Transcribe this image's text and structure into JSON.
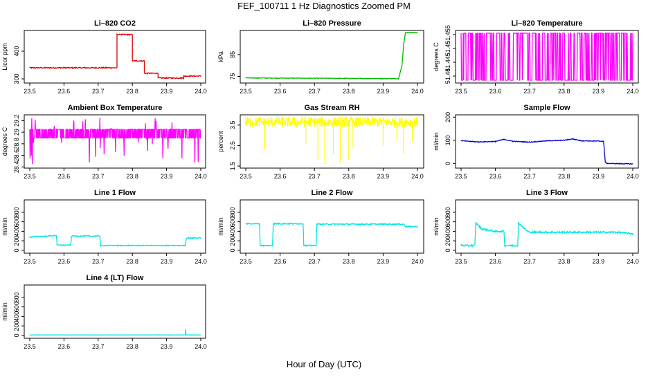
{
  "page": {
    "title": "FEF_100711  1 Hz Diagnostics Zoomed PM",
    "xlabel": "Hour of Day (UTC)"
  },
  "chart_data": [
    {
      "id": "co2",
      "type": "line",
      "title": "Li–820 CO2",
      "ylabel": "Licor ppm",
      "color": "#e00000",
      "xlim": [
        23.5,
        24.0
      ],
      "ylim": [
        285,
        475
      ],
      "xticks": [
        "23.5",
        "23.6",
        "23.7",
        "23.8",
        "23.9",
        "24.0"
      ],
      "yticks": [
        300,
        400
      ],
      "series": [
        {
          "x": [
            23.5,
            23.755,
            23.755,
            23.8,
            23.8,
            23.835,
            23.835,
            23.875,
            23.875,
            23.95,
            23.95,
            24.0
          ],
          "y": [
            340,
            340,
            460,
            460,
            365,
            365,
            320,
            320,
            303,
            303,
            310,
            310
          ],
          "noise": 2
        }
      ]
    },
    {
      "id": "pressure",
      "type": "line",
      "title": "Li–820 Pressure",
      "ylabel": "kPa",
      "color": "#00bb00",
      "xlim": [
        23.5,
        24.0
      ],
      "ylim": [
        72,
        96
      ],
      "xticks": [
        "23.5",
        "23.6",
        "23.7",
        "23.8",
        "23.9",
        "24.0"
      ],
      "yticks": [
        75,
        85
      ],
      "series": [
        {
          "x": [
            23.5,
            23.945,
            23.955,
            23.96,
            23.965,
            24.0
          ],
          "y": [
            74.3,
            74.0,
            80,
            90,
            95,
            95
          ],
          "noise": 0.15
        }
      ]
    },
    {
      "id": "licor_temp",
      "type": "line",
      "title": "Li–820 Temperature",
      "ylabel": "degrees C",
      "color": "#ff00ff",
      "xlim": [
        23.5,
        24.0
      ],
      "ylim": [
        51.4375,
        51.4565
      ],
      "xticks": [
        "23.5",
        "23.6",
        "23.7",
        "23.8",
        "23.9",
        "24.0"
      ],
      "yticks": [
        51.44,
        51.445,
        51.45,
        51.455
      ],
      "series": [
        {
          "pattern": "binary",
          "low": 51.4385,
          "high": 51.4555
        }
      ]
    },
    {
      "id": "ambient_temp",
      "type": "line",
      "title": "Ambient Box Temperature",
      "ylabel": "degrees C",
      "color": "#ff00ff",
      "xlim": [
        23.5,
        24.0
      ],
      "ylim": [
        28.38,
        29.3
      ],
      "xticks": [
        "23.5",
        "23.6",
        "23.7",
        "23.8",
        "23.9",
        "24.0"
      ],
      "yticks": [
        28.4,
        28.6,
        28.8,
        29.0,
        29.2
      ],
      "series": [
        {
          "pattern": "band",
          "low": 28.9,
          "high": 29.05,
          "spike_low": 28.42,
          "spike_high": 29.25
        }
      ]
    },
    {
      "id": "rh",
      "type": "line",
      "title": "Gas Stream RH",
      "ylabel": "percent",
      "color": "#ffff00",
      "xlim": [
        23.5,
        24.0
      ],
      "ylim": [
        1.4,
        4.0
      ],
      "xticks": [
        "23.5",
        "23.6",
        "23.7",
        "23.8",
        "23.9",
        "24.0"
      ],
      "yticks": [
        1.5,
        2.5,
        3.5
      ],
      "series": [
        {
          "x": [
            23.5,
            24.0
          ],
          "y": [
            3.65,
            3.65
          ],
          "noise": 0.25,
          "spikes": [
            [
              23.555,
              2.3
            ],
            [
              23.675,
              2.6
            ],
            [
              23.71,
              1.8
            ],
            [
              23.73,
              1.6
            ],
            [
              23.755,
              2.1
            ],
            [
              23.775,
              1.7
            ],
            [
              23.8,
              1.8
            ],
            [
              23.81,
              2.4
            ],
            [
              23.9,
              2.5
            ],
            [
              23.94,
              2.8
            ],
            [
              23.96,
              2.1
            ],
            [
              23.985,
              2.7
            ]
          ]
        }
      ]
    },
    {
      "id": "sample_flow",
      "type": "line",
      "title": "Sample Flow",
      "ylabel": "ml/min",
      "color": "#0000cc",
      "xlim": [
        23.5,
        24.0
      ],
      "ylim": [
        -20,
        210
      ],
      "xticks": [
        "23.5",
        "23.6",
        "23.7",
        "23.8",
        "23.9",
        "24.0"
      ],
      "yticks": [
        0,
        100,
        200
      ],
      "series": [
        {
          "x": [
            23.5,
            23.55,
            23.6,
            23.625,
            23.65,
            23.7,
            23.75,
            23.8,
            23.825,
            23.85,
            23.915,
            23.92,
            23.925,
            24.0
          ],
          "y": [
            98,
            93,
            95,
            104,
            96,
            92,
            98,
            100,
            106,
            98,
            96,
            5,
            0,
            -2
          ],
          "noise": 1.5
        }
      ]
    },
    {
      "id": "line1",
      "type": "line",
      "title": "Line 1 Flow",
      "ylabel": "ml/min",
      "color": "#00e5e5",
      "xlim": [
        23.5,
        24.0
      ],
      "ylim": [
        -60,
        1060
      ],
      "xticks": [
        "23.5",
        "23.6",
        "23.7",
        "23.8",
        "23.9",
        "24.0"
      ],
      "yticks": [
        0,
        200,
        400,
        600,
        800
      ],
      "series": [
        {
          "x": [
            23.5,
            23.502,
            23.578,
            23.58,
            23.62,
            23.622,
            23.705,
            23.707,
            23.955,
            23.958,
            24.0
          ],
          "y": [
            280,
            280,
            310,
            110,
            110,
            300,
            300,
            100,
            100,
            260,
            260
          ],
          "noise": 10
        }
      ]
    },
    {
      "id": "line2",
      "type": "line",
      "title": "Line 2 Flow",
      "ylabel": "ml/min",
      "color": "#00e5e5",
      "xlim": [
        23.5,
        24.0
      ],
      "ylim": [
        -60,
        1060
      ],
      "xticks": [
        "23.5",
        "23.6",
        "23.7",
        "23.8",
        "23.9",
        "24.0"
      ],
      "yticks": [
        0,
        200,
        400,
        600,
        800
      ],
      "series": [
        {
          "x": [
            23.5,
            23.54,
            23.542,
            23.578,
            23.58,
            23.667,
            23.669,
            23.705,
            23.707,
            23.96,
            23.965,
            24.0
          ],
          "y": [
            560,
            560,
            100,
            100,
            560,
            560,
            100,
            100,
            550,
            550,
            500,
            500
          ],
          "noise": 12
        }
      ]
    },
    {
      "id": "line3",
      "type": "line",
      "title": "Line 3 Flow",
      "ylabel": "ml/min",
      "color": "#00e5e5",
      "xlim": [
        23.5,
        24.0
      ],
      "ylim": [
        -60,
        1060
      ],
      "xticks": [
        "23.5",
        "23.6",
        "23.7",
        "23.8",
        "23.9",
        "24.0"
      ],
      "yticks": [
        0,
        200,
        400,
        600,
        800
      ],
      "series": [
        {
          "x": [
            23.5,
            23.502,
            23.54,
            23.543,
            23.56,
            23.6,
            23.625,
            23.627,
            23.665,
            23.667,
            23.69,
            23.7,
            23.95,
            24.0
          ],
          "y": [
            120,
            100,
            100,
            580,
            450,
            400,
            400,
            100,
            100,
            580,
            420,
            380,
            380,
            350
          ],
          "noise": 18
        }
      ]
    },
    {
      "id": "line4",
      "type": "line",
      "title": "Line 4 (LT) Flow",
      "ylabel": "ml/min",
      "color": "#00e5e5",
      "xlim": [
        23.5,
        24.0
      ],
      "ylim": [
        -60,
        1060
      ],
      "xticks": [
        "23.5",
        "23.6",
        "23.7",
        "23.8",
        "23.9",
        "24.0"
      ],
      "yticks": [
        0,
        200,
        400,
        600,
        800
      ],
      "series": [
        {
          "x": [
            23.5,
            23.955,
            23.956,
            23.957,
            24.0
          ],
          "y": [
            10,
            10,
            130,
            10,
            10
          ],
          "noise": 2
        }
      ]
    }
  ]
}
